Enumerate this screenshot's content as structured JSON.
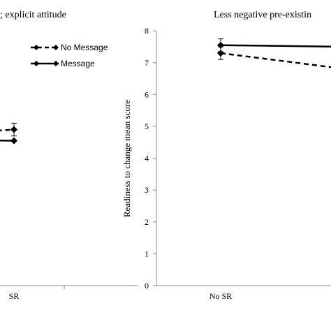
{
  "chart_data": [
    {
      "type": "line",
      "title": "; explicit attitude",
      "categories": [
        "",
        "SR"
      ],
      "series": [
        {
          "name": "No Message",
          "style": "dashed",
          "values": [
            4.65,
            4.9
          ],
          "error": [
            0.0,
            0.2
          ]
        },
        {
          "name": "Message",
          "style": "solid",
          "values": [
            4.6,
            4.55
          ],
          "error": [
            0.0,
            0.0
          ]
        }
      ],
      "legend_position": "top-right",
      "grid": false
    },
    {
      "type": "line",
      "title": "Less negative pre-existin",
      "ylabel": "Readiness to change mean score",
      "ylim": [
        0,
        8
      ],
      "yticks": [
        "0",
        "1",
        "2",
        "3",
        "4",
        "5",
        "6",
        "7",
        "8"
      ],
      "categories": [
        "No SR",
        ""
      ],
      "series": [
        {
          "name": "No Message",
          "style": "dashed",
          "values": [
            7.3,
            6.8
          ],
          "error": [
            0.2,
            0
          ]
        },
        {
          "name": "Message",
          "style": "solid",
          "values": [
            7.55,
            7.5
          ],
          "error": [
            0.2,
            0
          ]
        }
      ],
      "grid": false
    }
  ],
  "colors": {
    "line": "#000000",
    "axis": "#888888"
  }
}
